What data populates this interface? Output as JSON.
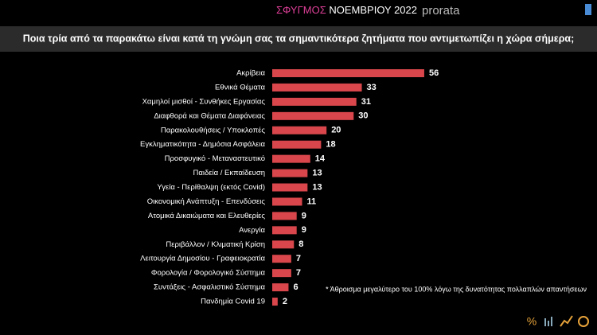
{
  "header": {
    "brand": "ΣΦΥΓΜΟΣ",
    "period": "ΝΟΕΜΒΡΙΟΥ 2022",
    "logo": "prorata"
  },
  "chart_data": {
    "type": "bar",
    "orientation": "horizontal",
    "title": "Ποια τρία από τα παρακάτω είναι κατά τη γνώμη σας τα σημαντικότερα ζητήματα που αντιμετωπίζει η χώρα σήμερα;",
    "categories": [
      "Ακρίβεια",
      "Εθνικά Θέματα",
      "Χαμηλοί μισθοί - Συνθήκες Εργασίας",
      "Διαφθορά και Θέματα Διαφάνειας",
      "Παρακολουθήσεις / Υποκλοπές",
      "Εγκληματικότητα - Δημόσια Ασφάλεια",
      "Προσφυγικό - Μεταναστευτικό",
      "Παιδεία / Εκπαίδευση",
      "Υγεία - Περίθαλψη (εκτός Covid)",
      "Οικονομική Ανάπτυξη - Επενδύσεις",
      "Ατομικά Δικαιώματα και Ελευθερίες",
      "Ανεργία",
      "Περιβάλλον / Κλιματική Κρίση",
      "Λειτουργία Δημοσίου - Γραφειοκρατία",
      "Φορολογία / Φορολογικό Σύστημα",
      "Συντάξεις - Ασφαλιστικό Σύστημα",
      "Πανδημία Covid 19"
    ],
    "values": [
      56,
      33,
      31,
      30,
      20,
      18,
      14,
      13,
      13,
      11,
      9,
      9,
      8,
      7,
      7,
      6,
      2
    ],
    "color": "#d9474c",
    "note": "* Άθροισμα μεγαλύτερο του 100% λόγω της δυνατότητας πολλαπλών απαντήσεων"
  }
}
